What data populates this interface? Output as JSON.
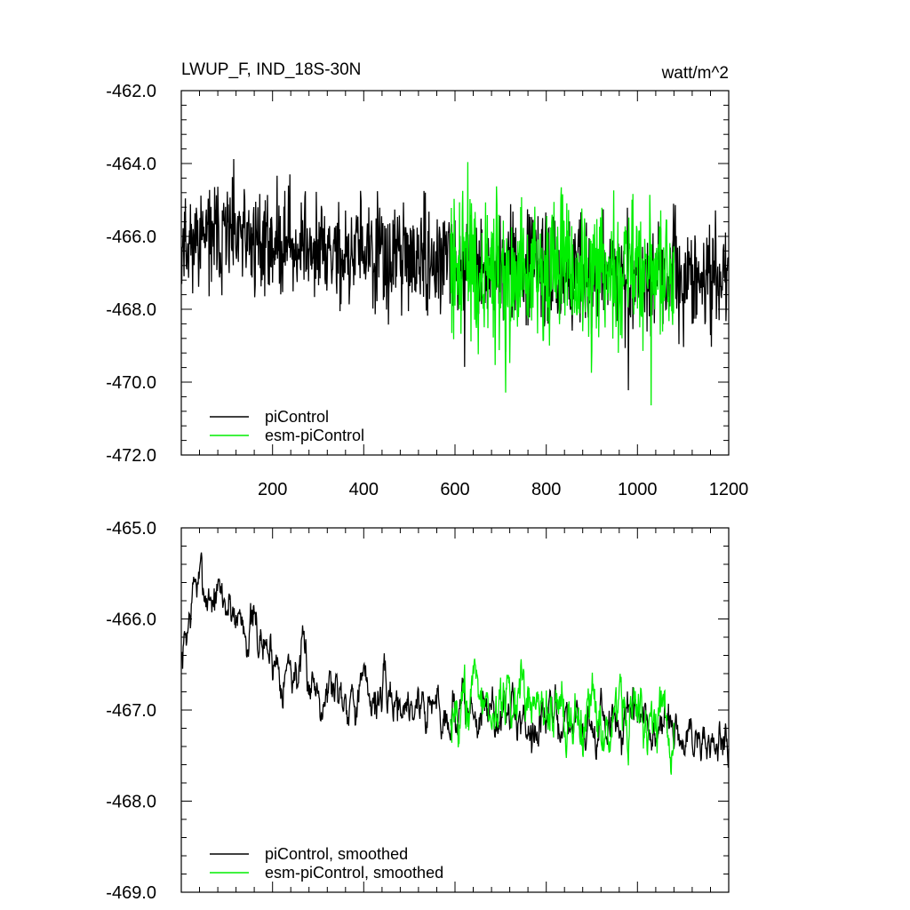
{
  "chart_data": [
    {
      "type": "line",
      "title": "LWUP_F, IND_18S-30N",
      "units": "watt/m^2",
      "xlabel": "",
      "ylabel": "",
      "xlim": [
        0,
        1200
      ],
      "ylim": [
        -472.0,
        -462.0
      ],
      "xticks": [
        200,
        400,
        600,
        800,
        1000,
        1200
      ],
      "xtick_labels": [
        "200",
        "400",
        "600",
        "800",
        "1000",
        "1200"
      ],
      "yticks": [
        -462.0,
        -464.0,
        -466.0,
        -468.0,
        -470.0,
        -472.0
      ],
      "ytick_labels": [
        "-462.0",
        "-464.0",
        "-466.0",
        "-468.0",
        "-470.0",
        "-472.0"
      ],
      "grid": false,
      "legend_position": "bottom-left",
      "series": [
        {
          "name": "piControl",
          "color": "#000000",
          "x_start": 1,
          "x_end": 1200,
          "mean": [
            [
              1,
              -466.0
            ],
            [
              100,
              -466.0
            ],
            [
              300,
              -466.4
            ],
            [
              600,
              -466.8
            ],
            [
              900,
              -467.0
            ],
            [
              1200,
              -467.2
            ]
          ],
          "spread": 1.3,
          "seed": 11
        },
        {
          "name": "esm-piControl",
          "color": "#00ee00",
          "x_start": 590,
          "x_end": 1080,
          "mean": [
            [
              590,
              -466.9
            ],
            [
              1080,
              -467.1
            ]
          ],
          "spread": 1.8,
          "seed": 29
        }
      ]
    },
    {
      "type": "line",
      "title": "",
      "xlabel": "",
      "ylabel": "",
      "xlim": [
        0,
        1200
      ],
      "ylim": [
        -469.0,
        -465.0
      ],
      "yticks": [
        -465.0,
        -466.0,
        -467.0,
        -468.0,
        -469.0
      ],
      "ytick_labels": [
        "-465.0",
        "-466.0",
        "-467.0",
        "-468.0",
        "-469.0"
      ],
      "grid": false,
      "legend_position": "bottom-left",
      "series": [
        {
          "name": "piControl, smoothed",
          "color": "#000000",
          "x_start": 1,
          "x_end": 1200,
          "mean": [
            [
              1,
              -466.5
            ],
            [
              30,
              -465.6
            ],
            [
              120,
              -465.9
            ],
            [
              200,
              -466.4
            ],
            [
              300,
              -466.7
            ],
            [
              400,
              -466.8
            ],
            [
              500,
              -466.9
            ],
            [
              600,
              -467.0
            ],
            [
              800,
              -467.1
            ],
            [
              1000,
              -467.2
            ],
            [
              1200,
              -467.4
            ]
          ],
          "spread": 0.35,
          "seed": 7
        },
        {
          "name": "esm-piControl, smoothed",
          "color": "#00ee00",
          "x_start": 590,
          "x_end": 1080,
          "mean": [
            [
              590,
              -466.9
            ],
            [
              1080,
              -467.1
            ]
          ],
          "spread": 0.45,
          "seed": 43
        }
      ]
    }
  ]
}
